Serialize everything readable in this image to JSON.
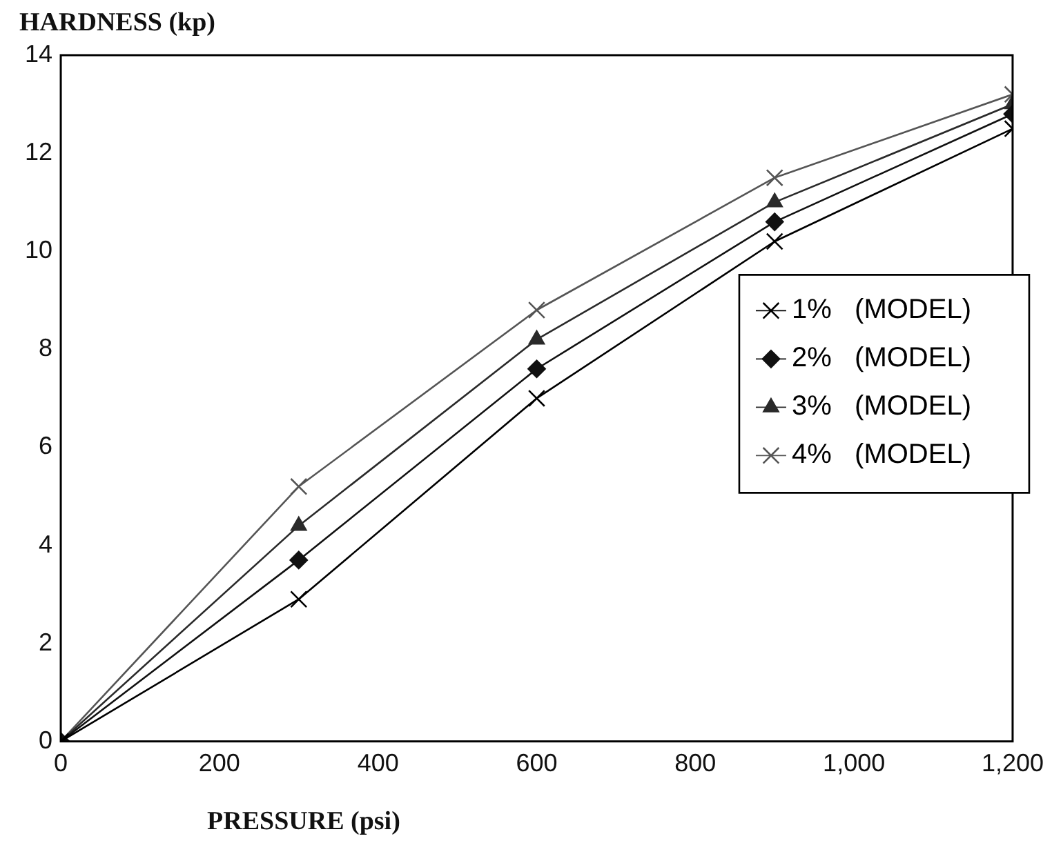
{
  "chart_data": {
    "type": "line",
    "xlabel": "PRESSURE (psi)",
    "ylabel": "HARDNESS (kp)",
    "x": [
      0,
      300,
      600,
      900,
      1200
    ],
    "xlim": [
      0,
      1200
    ],
    "xticks": [
      0,
      200,
      400,
      600,
      800,
      {
        "value": 1000,
        "label": "1,000"
      },
      {
        "value": 1200,
        "label": "1,200"
      }
    ],
    "ylim": [
      0,
      14
    ],
    "yticks": [
      0,
      2,
      4,
      6,
      8,
      10,
      12,
      14
    ],
    "grid": false,
    "legend": "right",
    "line_style": "solid",
    "series": [
      {
        "name": "1%   (MODEL)",
        "color": "#000000",
        "marker": "cross",
        "values": [
          0,
          2.9,
          7.0,
          10.2,
          12.5
        ]
      },
      {
        "name": "2%   (MODEL)",
        "color": "#111111",
        "marker": "diamond",
        "values": [
          0,
          3.7,
          7.6,
          10.6,
          12.8
        ]
      },
      {
        "name": "3%   (MODEL)",
        "color": "#2a2a2a",
        "marker": "triangle",
        "values": [
          0,
          4.4,
          8.2,
          11.0,
          13.0
        ]
      },
      {
        "name": "4%   (MODEL)",
        "color": "#555555",
        "marker": "cross",
        "values": [
          0,
          5.2,
          8.8,
          11.5,
          13.2
        ]
      }
    ]
  }
}
